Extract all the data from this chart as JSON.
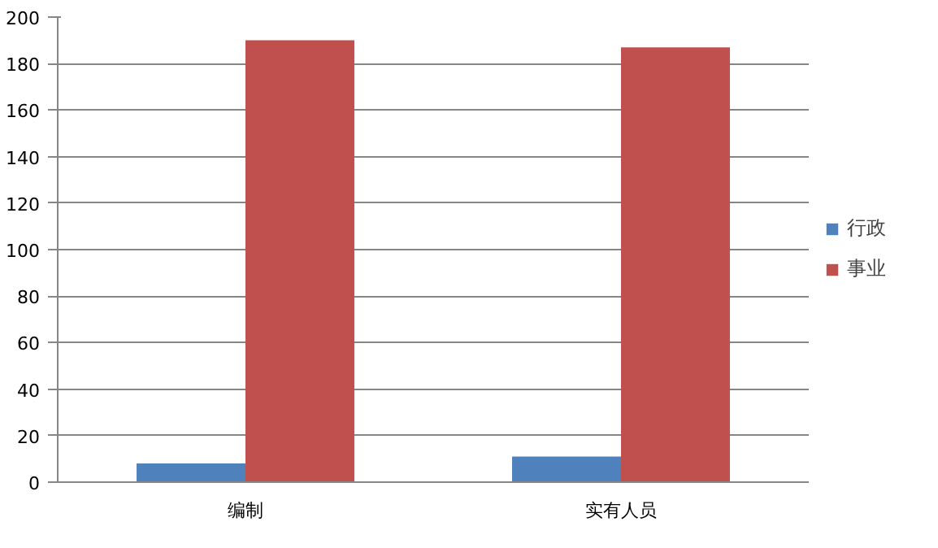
{
  "chart_data": {
    "type": "bar",
    "categories": [
      "编制",
      "实有人员"
    ],
    "series": [
      {
        "name": "行政",
        "color": "#4f81bd",
        "values": [
          8,
          11
        ]
      },
      {
        "name": "事业",
        "color": "#c0504d",
        "values": [
          190,
          187
        ]
      }
    ],
    "ylim": [
      0,
      200
    ],
    "yticks": [
      0,
      20,
      40,
      60,
      80,
      100,
      120,
      140,
      160,
      180,
      200
    ],
    "grid": "y",
    "legend": "right"
  }
}
